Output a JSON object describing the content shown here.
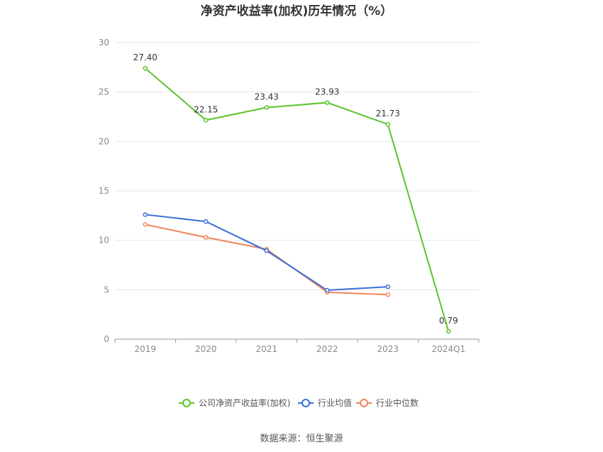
{
  "chart_data": {
    "type": "line",
    "title": "净资产收益率(加权)历年情况（%）",
    "categories": [
      "2019",
      "2020",
      "2021",
      "2022",
      "2023",
      "2024Q1"
    ],
    "ylim": [
      0,
      30
    ],
    "yticks": [
      0,
      5,
      10,
      15,
      20,
      25,
      30
    ],
    "grid": true,
    "legend_position": "bottom",
    "series": [
      {
        "name": "公司净资产收益率(加权)",
        "color": "#5cc42b",
        "values": [
          27.4,
          22.15,
          23.43,
          23.93,
          21.73,
          0.79
        ],
        "labels": [
          "27.40",
          "22.15",
          "23.43",
          "23.93",
          "21.73",
          "0.79"
        ]
      },
      {
        "name": "行业均值",
        "color": "#3a6fd8",
        "values": [
          12.6,
          11.9,
          8.95,
          4.95,
          5.3,
          null
        ]
      },
      {
        "name": "行业中位数",
        "color": "#f0845a",
        "values": [
          11.6,
          10.3,
          9.1,
          4.75,
          4.5,
          null
        ]
      }
    ]
  },
  "source": "数据来源：恒生聚源"
}
